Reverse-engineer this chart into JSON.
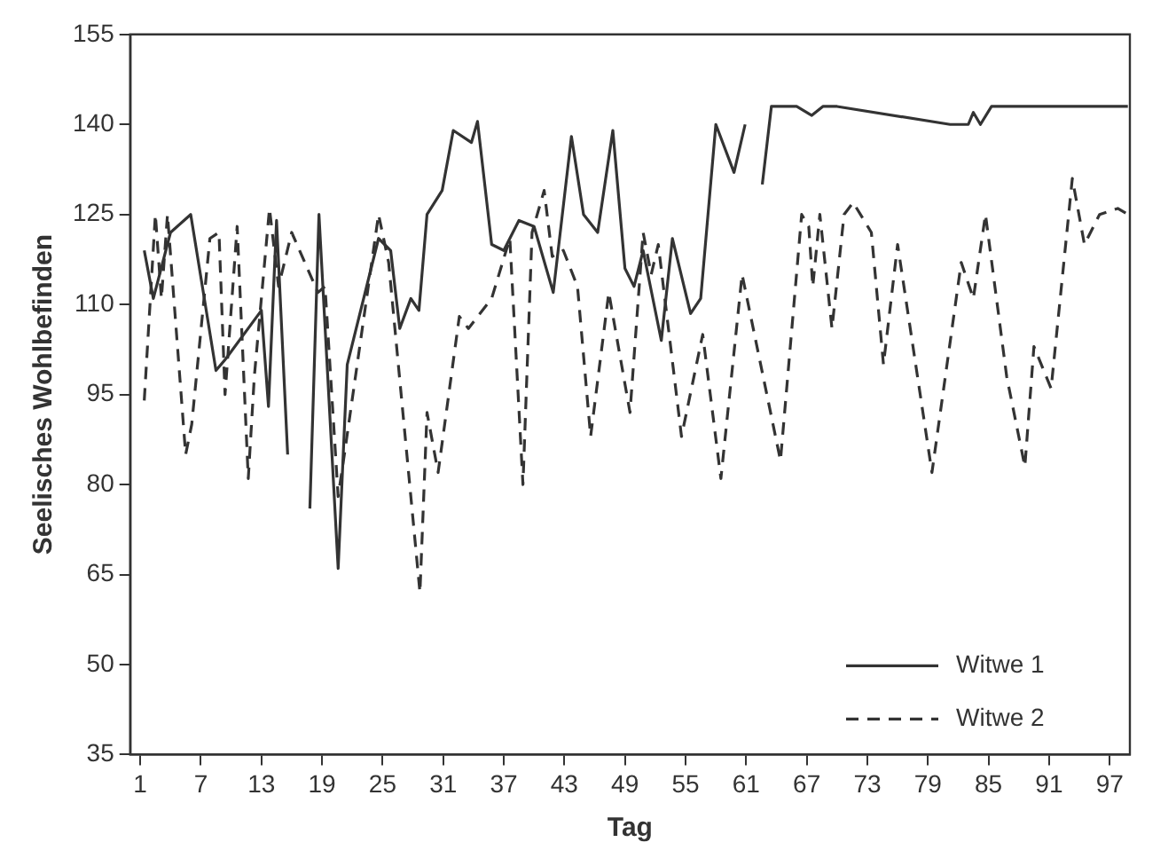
{
  "chart_data": {
    "type": "line",
    "xlabel": "Tag",
    "ylabel": "Seelisches Wohlbefinden",
    "xlim": [
      0,
      99
    ],
    "ylim": [
      35,
      155
    ],
    "xticks": [
      1,
      7,
      13,
      19,
      25,
      31,
      37,
      43,
      49,
      55,
      61,
      67,
      73,
      79,
      85,
      91,
      97
    ],
    "yticks": [
      35,
      50,
      65,
      80,
      95,
      110,
      125,
      140,
      155
    ],
    "grid": false,
    "legend": "bottom right",
    "marker": "none",
    "series": [
      {
        "name": "Witwe 1",
        "color": "#333333",
        "line_style": "solid",
        "x": [
          1.4,
          2.3,
          4,
          6,
          8.5,
          9.5,
          13,
          13.7,
          14.5,
          15.6,
          16.5,
          17.8,
          18.7,
          20.6,
          21.5,
          24.6,
          25.8,
          26.7,
          27.8,
          28.6,
          29.4,
          30.9,
          32,
          33.8,
          34.4,
          35.8,
          37,
          38.5,
          40,
          41.9,
          43.7,
          44.9,
          46.3,
          47.8,
          49,
          49.9,
          50.8,
          52.6,
          53.7,
          55.5,
          56.5,
          58,
          59.8,
          60.9,
          61.7,
          62.6,
          63.5,
          66,
          67.5,
          68.6,
          70,
          81.2,
          83,
          83.5,
          84.2,
          85.3,
          98.8
        ],
        "values": [
          119,
          111,
          122,
          125,
          99,
          101,
          109,
          93,
          124,
          85,
          null,
          76,
          125,
          66,
          100,
          121,
          119,
          106,
          111,
          109,
          125,
          129,
          139,
          137,
          140.5,
          120,
          119,
          124,
          123,
          112,
          138,
          125,
          122,
          139,
          116,
          113,
          119,
          104,
          121,
          108.5,
          111,
          140,
          132,
          140,
          null,
          130,
          143,
          143,
          141.5,
          143,
          143,
          140,
          140,
          142,
          140,
          143,
          143
        ]
      },
      {
        "name": "Witwe 2",
        "color": "#333333",
        "line_style": "dashed",
        "x": [
          1.4,
          2.5,
          3.1,
          3.7,
          5.5,
          6.1,
          7.9,
          8.8,
          9.4,
          10.6,
          11.7,
          12.3,
          13.8,
          14.7,
          16,
          18.6,
          19.3,
          20.6,
          21.3,
          24.6,
          25.6,
          28.7,
          29.4,
          30.5,
          32.6,
          33.5,
          35.8,
          37.6,
          38.9,
          39.8,
          41,
          41.8,
          42.9,
          44.3,
          45.6,
          47.4,
          49.5,
          50.8,
          51.6,
          52.3,
          54.6,
          56.7,
          58.5,
          60.6,
          64.4,
          66.5,
          67.2,
          67.6,
          68.3,
          69.5,
          70.7,
          71.6,
          73.4,
          74.6,
          76,
          79.4,
          82.3,
          83.5,
          84.7,
          86.8,
          88.6,
          89.5,
          91.2,
          93.3,
          94.5,
          96,
          97.8,
          98.8
        ],
        "values": [
          94,
          125,
          111,
          125,
          85,
          90,
          121,
          122,
          95,
          123,
          81,
          98,
          126,
          113,
          122,
          112,
          113,
          78,
          86,
          125,
          117,
          62,
          92,
          82,
          108,
          106,
          111,
          121,
          80,
          122,
          129,
          118,
          119,
          113,
          88,
          112,
          92,
          122,
          115,
          120,
          88,
          105,
          81,
          115,
          84,
          125,
          123,
          113,
          125,
          106,
          125,
          127,
          122,
          100,
          120,
          82,
          117,
          111,
          125,
          98,
          83,
          103,
          96,
          131,
          120,
          125,
          126,
          125
        ]
      }
    ]
  }
}
